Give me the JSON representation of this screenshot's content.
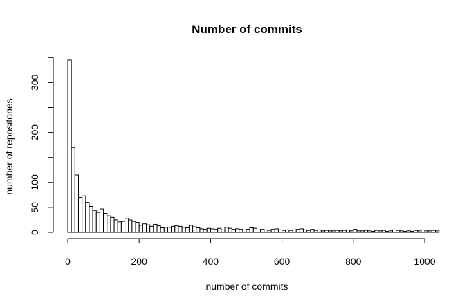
{
  "chart_data": {
    "type": "bar",
    "title": "Number of commits",
    "xlabel": "number of commits",
    "ylabel": "number of repositories",
    "xlim": [
      0,
      1040
    ],
    "ylim": [
      0,
      345
    ],
    "x_ticks": [
      0,
      200,
      400,
      600,
      800,
      1000
    ],
    "y_ticks": [
      0,
      50,
      100,
      200,
      300
    ],
    "y_minor_ticks": [
      150,
      250
    ],
    "grid": false,
    "bin_width": 10,
    "bin_start": 0,
    "values": [
      345,
      170,
      115,
      70,
      73,
      60,
      52,
      44,
      40,
      47,
      38,
      33,
      30,
      25,
      21,
      22,
      28,
      25,
      22,
      20,
      14,
      17,
      15,
      12,
      16,
      13,
      9,
      10,
      10,
      12,
      13,
      12,
      10,
      9,
      14,
      11,
      9,
      7,
      6,
      8,
      7,
      6,
      8,
      5,
      10,
      8,
      6,
      7,
      6,
      5,
      6,
      9,
      8,
      5,
      6,
      5,
      4,
      6,
      7,
      5,
      4,
      5,
      4,
      5,
      6,
      7,
      5,
      4,
      6,
      4,
      5,
      3,
      4,
      3,
      3,
      4,
      3,
      4,
      5,
      3,
      6,
      3,
      3,
      4,
      3,
      2,
      4,
      3,
      4,
      2,
      3,
      5,
      4,
      3,
      2,
      3,
      2,
      4,
      3,
      5,
      3,
      3,
      4,
      3
    ]
  }
}
